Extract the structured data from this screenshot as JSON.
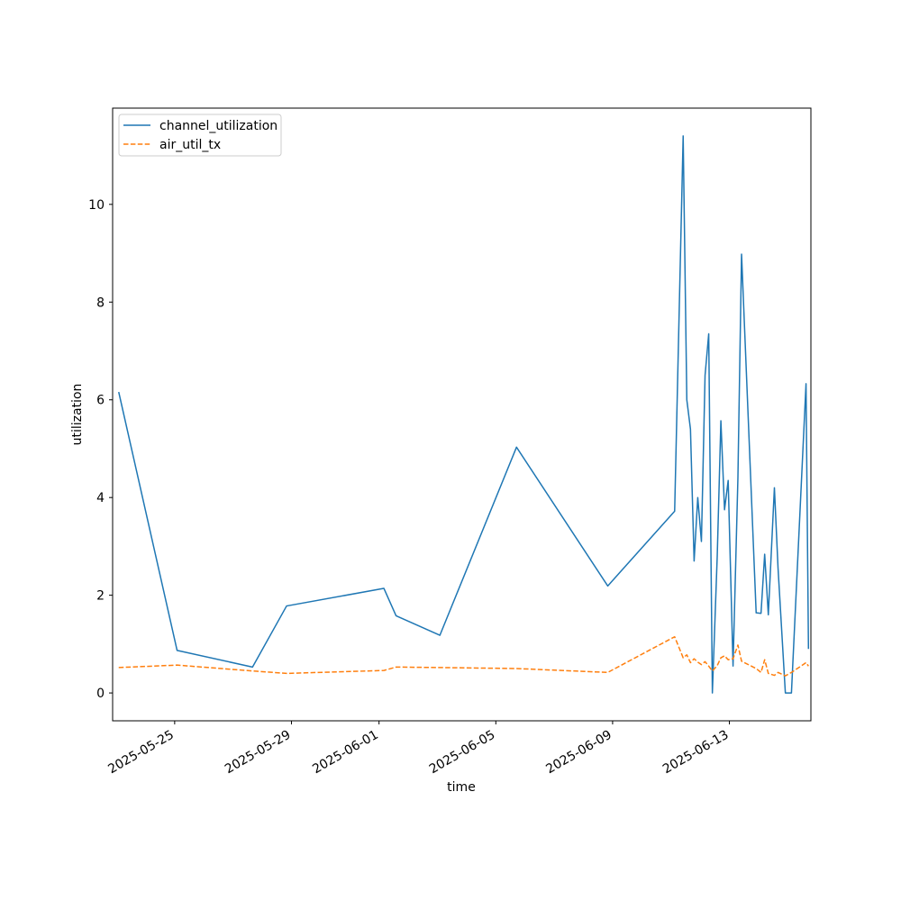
{
  "chart_data": {
    "type": "line",
    "xlabel": "time",
    "ylabel": "utilization",
    "x_axis_type": "date",
    "xlim": [
      "2025-05-22T21:00",
      "2025-06-15T19:00"
    ],
    "ylim": [
      -0.57,
      11.97
    ],
    "x_ticks": [
      "2025-05-25",
      "2025-05-29",
      "2025-06-01",
      "2025-06-05",
      "2025-06-09",
      "2025-06-13"
    ],
    "y_ticks": [
      0,
      2,
      4,
      6,
      8,
      10
    ],
    "grid": false,
    "legend_position": "upper-left",
    "series": [
      {
        "name": "channel_utilization",
        "color": "#1f77b4",
        "style": "solid",
        "x": [
          "2025-05-23T02:00",
          "2025-05-25T02:00",
          "2025-05-27T16:00",
          "2025-05-28T20:00",
          "2025-06-01T04:00",
          "2025-06-01T14:00",
          "2025-06-03T02:00",
          "2025-06-05T17:00",
          "2025-06-08T20:00",
          "2025-06-11T03:00",
          "2025-06-11T10:00",
          "2025-06-11T13:00",
          "2025-06-11T16:00",
          "2025-06-11T19:00",
          "2025-06-11T22:00",
          "2025-06-12T01:00",
          "2025-06-12T04:00",
          "2025-06-12T07:00",
          "2025-06-12T10:00",
          "2025-06-12T14:00",
          "2025-06-12T17:00",
          "2025-06-12T20:00",
          "2025-06-12T23:00",
          "2025-06-13T03:00",
          "2025-06-13T07:00",
          "2025-06-13T10:00",
          "2025-06-13T22:00",
          "2025-06-14T02:00",
          "2025-06-14T05:00",
          "2025-06-14T08:00",
          "2025-06-14T13:00",
          "2025-06-14T16:00",
          "2025-06-14T22:00",
          "2025-06-15T03:00",
          "2025-06-15T15:00",
          "2025-06-15T17:00"
        ],
        "values": [
          6.16,
          0.87,
          0.53,
          1.78,
          2.14,
          1.58,
          1.18,
          5.03,
          2.19,
          3.72,
          11.4,
          6.0,
          5.4,
          2.7,
          4.0,
          3.1,
          6.5,
          7.35,
          0.0,
          2.8,
          5.57,
          3.75,
          4.35,
          0.55,
          4.4,
          8.98,
          1.64,
          1.63,
          2.84,
          1.6,
          4.2,
          2.55,
          0.0,
          0.0,
          6.33,
          0.9
        ]
      },
      {
        "name": "air_util_tx",
        "color": "#ff7f0e",
        "style": "dashed",
        "x": [
          "2025-05-23T02:00",
          "2025-05-25T02:00",
          "2025-05-27T16:00",
          "2025-05-28T20:00",
          "2025-06-01T04:00",
          "2025-06-01T14:00",
          "2025-06-03T02:00",
          "2025-06-05T17:00",
          "2025-06-08T20:00",
          "2025-06-11T03:00",
          "2025-06-11T10:00",
          "2025-06-11T13:00",
          "2025-06-11T16:00",
          "2025-06-11T19:00",
          "2025-06-11T22:00",
          "2025-06-12T01:00",
          "2025-06-12T04:00",
          "2025-06-12T07:00",
          "2025-06-12T10:00",
          "2025-06-12T14:00",
          "2025-06-12T17:00",
          "2025-06-12T20:00",
          "2025-06-12T23:00",
          "2025-06-13T03:00",
          "2025-06-13T07:00",
          "2025-06-13T10:00",
          "2025-06-13T22:00",
          "2025-06-14T02:00",
          "2025-06-14T05:00",
          "2025-06-14T08:00",
          "2025-06-14T13:00",
          "2025-06-14T16:00",
          "2025-06-14T22:00",
          "2025-06-15T03:00",
          "2025-06-15T15:00",
          "2025-06-15T17:00"
        ],
        "values": [
          0.52,
          0.57,
          0.45,
          0.4,
          0.46,
          0.53,
          0.52,
          0.5,
          0.42,
          1.15,
          0.72,
          0.78,
          0.62,
          0.7,
          0.63,
          0.58,
          0.64,
          0.55,
          0.45,
          0.56,
          0.72,
          0.76,
          0.68,
          0.7,
          0.98,
          0.65,
          0.5,
          0.42,
          0.68,
          0.4,
          0.36,
          0.42,
          0.35,
          0.42,
          0.62,
          0.55
        ]
      }
    ]
  }
}
